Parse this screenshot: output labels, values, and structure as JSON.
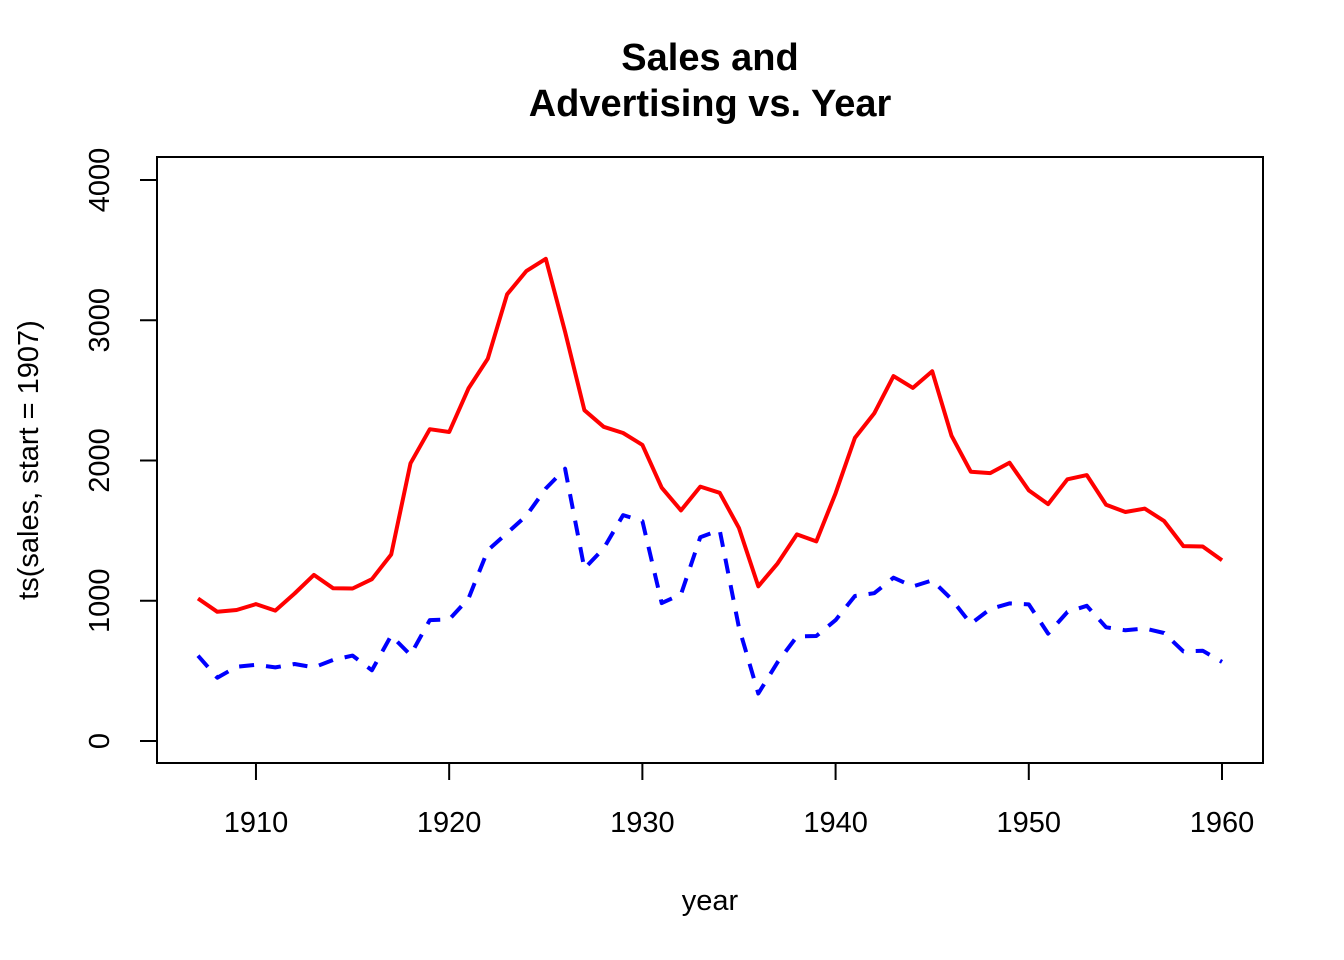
{
  "chart_data": {
    "type": "line",
    "title": [
      "Sales and",
      "Advertising vs. Year"
    ],
    "xlabel": "year",
    "ylabel": "ts(sales, start = 1907)",
    "xlim": [
      1907,
      1960
    ],
    "ylim": [
      0,
      4000
    ],
    "x_ticks": [
      1910,
      1920,
      1930,
      1940,
      1950,
      1960
    ],
    "y_ticks": [
      0,
      1000,
      2000,
      3000,
      4000
    ],
    "grid": false,
    "x": [
      1907,
      1908,
      1909,
      1910,
      1911,
      1912,
      1913,
      1914,
      1915,
      1916,
      1917,
      1918,
      1919,
      1920,
      1921,
      1922,
      1923,
      1924,
      1925,
      1926,
      1927,
      1928,
      1929,
      1930,
      1931,
      1932,
      1933,
      1934,
      1935,
      1936,
      1937,
      1938,
      1939,
      1940,
      1941,
      1942,
      1943,
      1944,
      1945,
      1946,
      1947,
      1948,
      1949,
      1950,
      1951,
      1952,
      1953,
      1954,
      1955,
      1956,
      1957,
      1958,
      1959,
      1960
    ],
    "series": [
      {
        "color": "#ff0000",
        "linestyle": "solid",
        "values": [
          1016,
          921,
          934,
          976,
          930,
          1052,
          1184,
          1089,
          1087,
          1154,
          1330,
          1980,
          2223,
          2203,
          2514,
          2726,
          3185,
          3352,
          3438,
          2917,
          2359,
          2240,
          2196,
          2111,
          1806,
          1644,
          1814,
          1770,
          1518,
          1103,
          1266,
          1473,
          1423,
          1767,
          2161,
          2336,
          2602,
          2518,
          2637,
          2177,
          1920,
          1910,
          1984,
          1787,
          1689,
          1866,
          1896,
          1684,
          1633,
          1657,
          1569,
          1390,
          1387,
          1289
        ]
      },
      {
        "color": "#0000ff",
        "linestyle": "dashed",
        "values": [
          608,
          451,
          529,
          543,
          525,
          549,
          525,
          578,
          609,
          504,
          752,
          613,
          862,
          866,
          1016,
          1360,
          1482,
          1608,
          1800,
          1941,
          1229,
          1373,
          1611,
          1568,
          983,
          1046,
          1453,
          1504,
          807,
          339,
          562,
          745,
          749,
          862,
          1034,
          1054,
          1164,
          1102,
          1145,
          1012,
          836,
          941,
          981,
          974,
          766,
          920,
          964,
          811,
          789,
          802,
          770,
          639,
          644,
          564
        ]
      }
    ]
  }
}
